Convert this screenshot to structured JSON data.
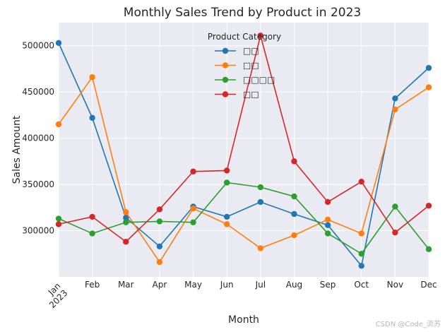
{
  "chart_data": {
    "type": "line",
    "title": "Monthly Sales Trend by Product in 2023",
    "xlabel": "Month",
    "ylabel": "Sales Amount",
    "categories": [
      "Jan",
      "Feb",
      "Mar",
      "Apr",
      "May",
      "Jun",
      "Jul",
      "Aug",
      "Sep",
      "Oct",
      "Nov",
      "Dec"
    ],
    "year_label": "2023",
    "ylim": [
      250000,
      525000
    ],
    "yticks": [
      300000,
      350000,
      400000,
      450000,
      500000
    ],
    "grid": true,
    "legend": {
      "title": "Product Category",
      "placement": "top-center"
    },
    "series": [
      {
        "name": "□□",
        "color": "#1f77b4",
        "values": [
          503000,
          422000,
          314000,
          283000,
          326000,
          315000,
          331000,
          318000,
          306000,
          262000,
          443000,
          476000
        ]
      },
      {
        "name": "□□",
        "color": "#ff7f0e",
        "values": [
          415000,
          466000,
          320000,
          266000,
          324000,
          307000,
          281000,
          295000,
          312000,
          297000,
          431000,
          455000
        ]
      },
      {
        "name": "□□□□",
        "color": "#2ca02c",
        "values": [
          313000,
          297000,
          309000,
          310000,
          309000,
          352000,
          347000,
          337000,
          297000,
          275000,
          326000,
          280000
        ]
      },
      {
        "name": "□□",
        "color": "#d62728",
        "values": [
          307000,
          315000,
          288000,
          323000,
          364000,
          365000,
          511000,
          375000,
          331000,
          353000,
          298000,
          327000
        ]
      }
    ]
  },
  "watermark": "CSDN @Code_流苏"
}
